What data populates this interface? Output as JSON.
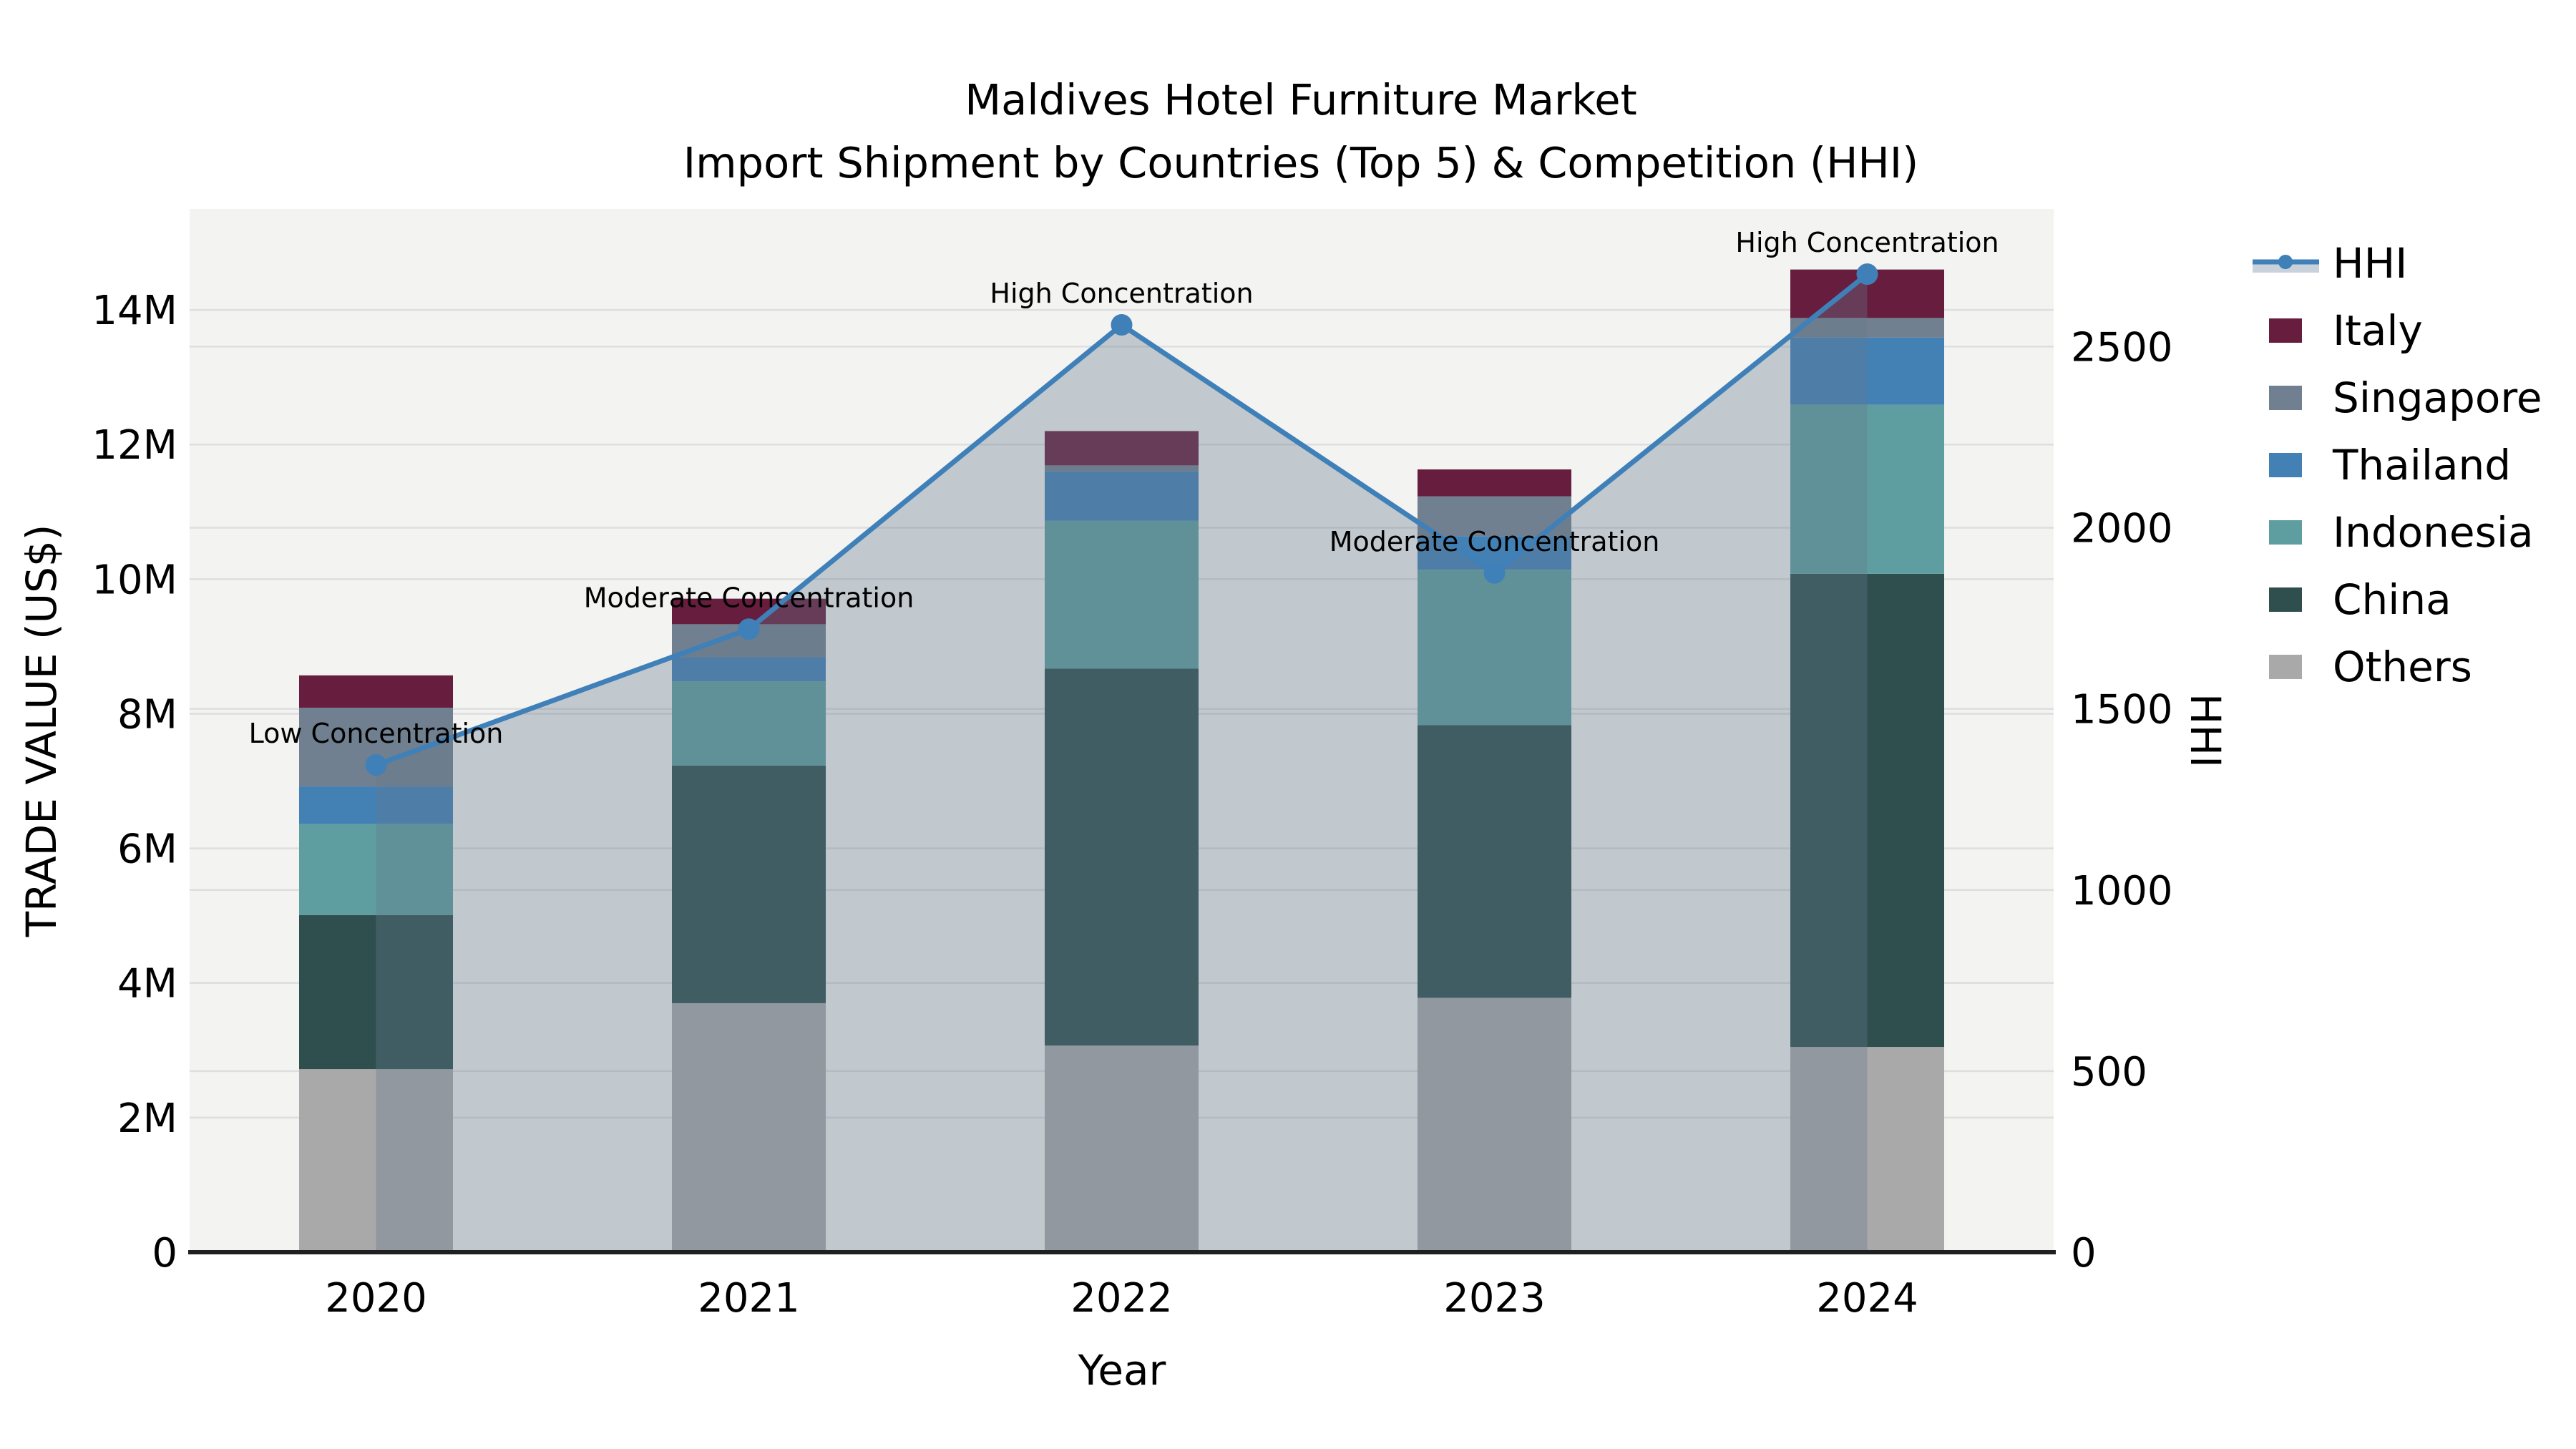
{
  "title": {
    "line1": "Maldives Hotel Furniture Market",
    "line2": "Import Shipment by Countries (Top 5) & Competition (HHI)"
  },
  "axes": {
    "x": {
      "label": "Year",
      "tick_labels": [
        "2020",
        "2021",
        "2022",
        "2023",
        "2024"
      ]
    },
    "left": {
      "label": "TRADE VALUE (US$)",
      "ticks": [
        {
          "v": 0,
          "t": "0"
        },
        {
          "v": 2,
          "t": "2M"
        },
        {
          "v": 4,
          "t": "4M"
        },
        {
          "v": 6,
          "t": "6M"
        },
        {
          "v": 8,
          "t": "8M"
        },
        {
          "v": 10,
          "t": "10M"
        },
        {
          "v": 12,
          "t": "12M"
        },
        {
          "v": 14,
          "t": "14M"
        }
      ],
      "max": 15.5
    },
    "right": {
      "label": "HHI",
      "ticks": [
        {
          "v": 0,
          "t": "0"
        },
        {
          "v": 500,
          "t": "500"
        },
        {
          "v": 1000,
          "t": "1000"
        },
        {
          "v": 1500,
          "t": "1500"
        },
        {
          "v": 2000,
          "t": "2000"
        },
        {
          "v": 2500,
          "t": "2500"
        }
      ],
      "max": 2880
    }
  },
  "legend": {
    "items": [
      {
        "label": "HHI",
        "type": "line",
        "color": "#3f80b8"
      },
      {
        "label": "Italy",
        "type": "swatch",
        "color": "#671d3d"
      },
      {
        "label": "Singapore",
        "type": "swatch",
        "color": "#708090"
      },
      {
        "label": "Thailand",
        "type": "swatch",
        "color": "#4381b5"
      },
      {
        "label": "Indonesia",
        "type": "swatch",
        "color": "#5f9ea0"
      },
      {
        "label": "China",
        "type": "swatch",
        "color": "#2f4f4f"
      },
      {
        "label": "Others",
        "type": "swatch",
        "color": "#a9a9a9"
      }
    ]
  },
  "chart_data": {
    "type": "bar+line",
    "title": "Maldives Hotel Furniture Market — Import Shipment by Countries (Top 5) & Competition (HHI)",
    "categories": [
      "2020",
      "2021",
      "2022",
      "2023",
      "2024"
    ],
    "value_unit": "million US$",
    "stack_order_note": "series listed bottom-to-top of the stacked bars",
    "series": [
      {
        "name": "Others",
        "color": "#a9a9a9",
        "values": [
          2.72,
          3.7,
          3.07,
          3.78,
          3.05
        ]
      },
      {
        "name": "China",
        "color": "#2f4f4f",
        "values": [
          2.29,
          3.53,
          5.6,
          4.05,
          7.03
        ]
      },
      {
        "name": "Indonesia",
        "color": "#5f9ea0",
        "values": [
          1.35,
          1.25,
          2.2,
          2.31,
          2.51
        ]
      },
      {
        "name": "Thailand",
        "color": "#4381b5",
        "values": [
          0.56,
          0.36,
          0.73,
          0.5,
          1.0
        ]
      },
      {
        "name": "Singapore",
        "color": "#708090",
        "values": [
          1.17,
          0.49,
          0.09,
          0.59,
          0.29
        ]
      },
      {
        "name": "Italy",
        "color": "#671d3d",
        "values": [
          0.48,
          0.38,
          0.51,
          0.4,
          0.72
        ]
      }
    ],
    "bar_totals": [
      8.57,
      9.71,
      12.2,
      11.63,
      14.6
    ],
    "hhi": {
      "name": "HHI",
      "axis": "right",
      "line_color": "#3f80b8",
      "area_fill": "#64788c",
      "area_opacity": 0.35,
      "values": [
        1345,
        1720,
        2560,
        1875,
        2700
      ]
    },
    "annotations": [
      "Low Concentration",
      "Moderate Concentration",
      "High Concentration",
      "Moderate Concentration",
      "High Concentration"
    ],
    "xlabel": "Year",
    "ylabel_left": "TRADE VALUE (US$)",
    "ylabel_right": "HHI",
    "ylim_left": [
      0,
      15.5
    ],
    "ylim_right": [
      0,
      2880
    ],
    "grid": true,
    "legend_position": "right"
  },
  "colors": {
    "panel_bg": "#f3f3f2",
    "grid": "#dedede",
    "spine": "#1f1f1f",
    "text": "#000000"
  }
}
